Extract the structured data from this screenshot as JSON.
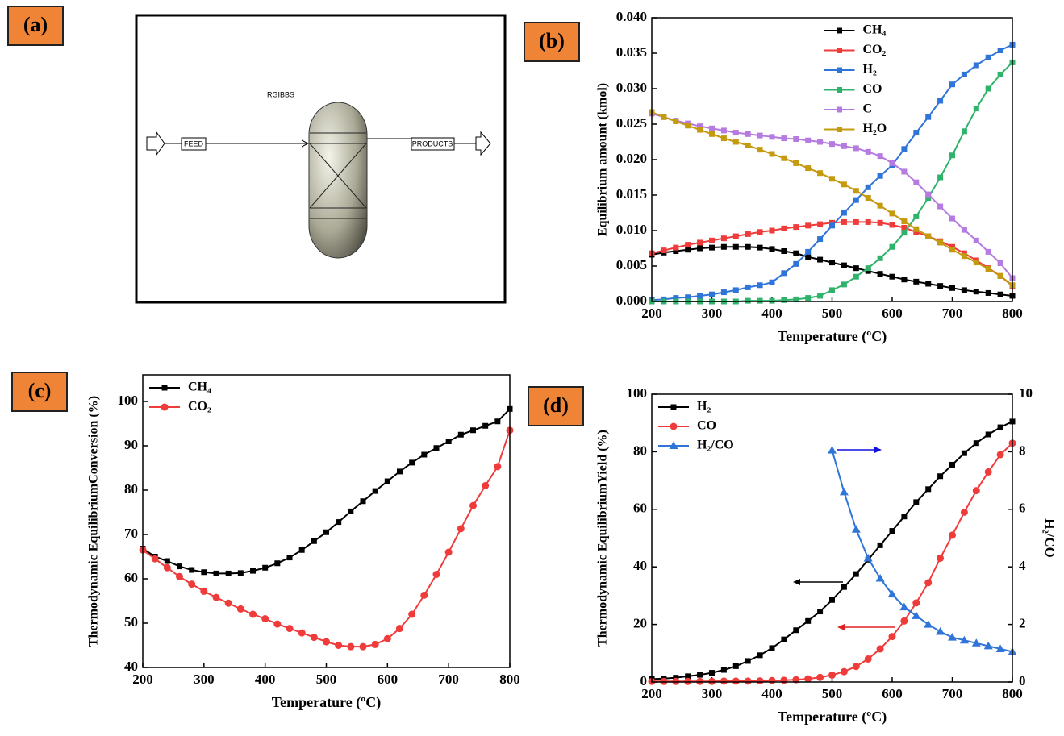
{
  "diagram": {
    "panel_label": "(a)",
    "reactor_label": "RGIBBS",
    "inlet": "FEED",
    "outlet": "PRODUCTS"
  },
  "chart_data": [
    {
      "type": "line",
      "panel_label": "(b)",
      "x_label": "Temperature (ºC)",
      "y_label": "Equilibrium amount (kmol)",
      "x": [
        200,
        220,
        240,
        260,
        280,
        300,
        320,
        340,
        360,
        380,
        400,
        420,
        440,
        460,
        480,
        500,
        520,
        540,
        560,
        580,
        600,
        620,
        640,
        660,
        680,
        700,
        720,
        740,
        760,
        780,
        800
      ],
      "xlim": [
        200,
        800
      ],
      "xticks": [
        200,
        300,
        400,
        500,
        600,
        700,
        800
      ],
      "ylim": [
        0,
        0.04
      ],
      "yticks": [
        {
          "value": 0,
          "label": "0.000"
        },
        {
          "value": 0.005,
          "label": "0.005"
        },
        {
          "value": 0.01,
          "label": "0.010"
        },
        {
          "value": 0.015,
          "label": "0.015"
        },
        {
          "value": 0.02,
          "label": "0.020"
        },
        {
          "value": 0.025,
          "label": "0.025"
        },
        {
          "value": 0.03,
          "label": "0.030"
        },
        {
          "value": 0.035,
          "label": "0.035"
        },
        {
          "value": 0.04,
          "label": "0.040"
        }
      ],
      "legend": "upper center",
      "series": [
        {
          "name": "CH₄",
          "color": "#000000",
          "marker": "square",
          "values": [
            0.0066,
            0.0069,
            0.0071,
            0.0073,
            0.0075,
            0.0076,
            0.0077,
            0.0077,
            0.0077,
            0.0076,
            0.0074,
            0.0071,
            0.0068,
            0.0063,
            0.0059,
            0.0055,
            0.0051,
            0.0047,
            0.0043,
            0.0039,
            0.0035,
            0.0031,
            0.0028,
            0.0025,
            0.0022,
            0.0019,
            0.0016,
            0.0014,
            0.0012,
            0.001,
            0.0008
          ]
        },
        {
          "name": "CO₂",
          "color": "#f03b3b",
          "marker": "square",
          "values": [
            0.0068,
            0.0072,
            0.0076,
            0.008,
            0.0083,
            0.0086,
            0.0089,
            0.0092,
            0.0095,
            0.0098,
            0.01,
            0.0103,
            0.0105,
            0.0107,
            0.0109,
            0.0111,
            0.0112,
            0.0112,
            0.0112,
            0.0111,
            0.0108,
            0.0104,
            0.0098,
            0.0092,
            0.0085,
            0.0077,
            0.0068,
            0.0058,
            0.0047,
            0.0036,
            0.0022
          ]
        },
        {
          "name": "H₂",
          "color": "#2f74d8",
          "marker": "square",
          "values": [
            0.0002,
            0.0003,
            0.0005,
            0.0006,
            0.0008,
            0.001,
            0.0013,
            0.0016,
            0.002,
            0.0023,
            0.0027,
            0.004,
            0.0053,
            0.007,
            0.0088,
            0.0107,
            0.0125,
            0.0143,
            0.0161,
            0.0177,
            0.0192,
            0.0215,
            0.0238,
            0.026,
            0.0283,
            0.0306,
            0.032,
            0.0333,
            0.0344,
            0.0354,
            0.0362
          ]
        },
        {
          "name": "CO",
          "color": "#2fb36b",
          "marker": "square",
          "values": [
            0,
            0,
            0,
            0,
            0,
            0,
            0,
            0,
            0.0001,
            0.0001,
            0.0001,
            0.0002,
            0.0003,
            0.0005,
            0.0008,
            0.0016,
            0.0024,
            0.0035,
            0.0047,
            0.0061,
            0.0077,
            0.0097,
            0.012,
            0.0146,
            0.0175,
            0.0206,
            0.024,
            0.0272,
            0.03,
            0.032,
            0.0337
          ]
        },
        {
          "name": "C",
          "color": "#b57be0",
          "marker": "square",
          "values": [
            0.0265,
            0.026,
            0.0255,
            0.0251,
            0.0247,
            0.0244,
            0.0241,
            0.0238,
            0.0236,
            0.0234,
            0.0232,
            0.023,
            0.0229,
            0.0227,
            0.0225,
            0.0222,
            0.0219,
            0.0216,
            0.0211,
            0.0205,
            0.0195,
            0.0183,
            0.0168,
            0.0151,
            0.0134,
            0.0117,
            0.0101,
            0.0086,
            0.007,
            0.0054,
            0.0033
          ]
        },
        {
          "name": "H₂O",
          "color": "#c49a0f",
          "marker": "square",
          "values": [
            0.0267,
            0.026,
            0.0254,
            0.0248,
            0.0242,
            0.0236,
            0.023,
            0.0225,
            0.022,
            0.0214,
            0.0208,
            0.0202,
            0.0195,
            0.0188,
            0.0181,
            0.0173,
            0.0165,
            0.0156,
            0.0146,
            0.0135,
            0.0124,
            0.0113,
            0.0102,
            0.0092,
            0.0083,
            0.0073,
            0.0064,
            0.0055,
            0.0046,
            0.0036,
            0.0023
          ]
        }
      ]
    },
    {
      "type": "line",
      "panel_label": "(c)",
      "x_label": "Temperature (ºC)",
      "y_label": "Thermodynamic EquilibriumConversion (%)",
      "x": [
        200,
        220,
        240,
        260,
        280,
        300,
        320,
        340,
        360,
        380,
        400,
        420,
        440,
        460,
        480,
        500,
        520,
        540,
        560,
        580,
        600,
        620,
        640,
        660,
        680,
        700,
        720,
        740,
        760,
        780,
        800
      ],
      "xlim": [
        200,
        800
      ],
      "xticks": [
        200,
        300,
        400,
        500,
        600,
        700,
        800
      ],
      "ylim": [
        40,
        106
      ],
      "yticks": [
        40,
        50,
        60,
        70,
        80,
        90,
        100
      ],
      "legend": "upper left",
      "series": [
        {
          "name": "CH₄",
          "color": "#000000",
          "marker": "square",
          "values": [
            66.8,
            65,
            64,
            62.8,
            62,
            61.5,
            61.2,
            61.2,
            61.3,
            61.8,
            62.5,
            63.5,
            64.8,
            66.5,
            68.5,
            70.5,
            72.8,
            75.2,
            77.5,
            79.8,
            82,
            84.2,
            86.2,
            88,
            89.5,
            91,
            92.5,
            93.5,
            94.5,
            95.5,
            98.3
          ]
        },
        {
          "name": "CO₂",
          "color": "#f03b3b",
          "marker": "circle",
          "values": [
            66.5,
            64.5,
            62.5,
            60.5,
            58.8,
            57.2,
            55.8,
            54.5,
            53.2,
            52,
            51,
            49.8,
            48.8,
            47.8,
            46.8,
            45.8,
            45,
            44.7,
            44.7,
            45.2,
            46.5,
            48.8,
            52,
            56.3,
            61,
            66,
            71.3,
            76.5,
            81,
            85.3,
            93.5
          ]
        }
      ]
    },
    {
      "type": "line",
      "panel_label": "(d)",
      "x_label": "Temperature (ºC)",
      "y_label": "Thermodynamic EquilibriumYield (%)",
      "y2_label": "H₂/CO",
      "x": [
        200,
        220,
        240,
        260,
        280,
        300,
        320,
        340,
        360,
        380,
        400,
        420,
        440,
        460,
        480,
        500,
        520,
        540,
        560,
        580,
        600,
        620,
        640,
        660,
        680,
        700,
        720,
        740,
        760,
        780,
        800
      ],
      "xlim": [
        200,
        800
      ],
      "xticks": [
        200,
        300,
        400,
        500,
        600,
        700,
        800
      ],
      "ylim": [
        0,
        100
      ],
      "yticks": [
        0,
        20,
        40,
        60,
        80,
        100
      ],
      "y2lim": [
        0,
        10
      ],
      "y2ticks": [
        0,
        2,
        4,
        6,
        8,
        10
      ],
      "legend": "upper left",
      "series": [
        {
          "name": "H₂",
          "color": "#000000",
          "marker": "square",
          "values": [
            1,
            1.2,
            1.5,
            2,
            2.5,
            3.2,
            4.2,
            5.5,
            7.3,
            9.3,
            11.8,
            14.8,
            18,
            21.2,
            24.5,
            28.5,
            33,
            37.5,
            42.5,
            47.5,
            52.5,
            57.5,
            62.5,
            67,
            71.5,
            75.5,
            79.5,
            83,
            86,
            88.5,
            90.5
          ]
        },
        {
          "name": "CO",
          "color": "#f03b3b",
          "marker": "circle",
          "values": [
            0.2,
            0.2,
            0.2,
            0.2,
            0.2,
            0.2,
            0.3,
            0.3,
            0.3,
            0.4,
            0.5,
            0.6,
            0.8,
            1.1,
            1.6,
            2.4,
            3.6,
            5.4,
            8,
            11.5,
            15.8,
            21.2,
            27.5,
            34.5,
            43,
            51,
            59,
            66.5,
            73,
            79,
            83
          ]
        },
        {
          "name": "H₂/CO",
          "color": "#2f74d8",
          "marker": "triangle",
          "axis": "y2",
          "values": [
            null,
            null,
            null,
            null,
            null,
            null,
            null,
            null,
            null,
            null,
            null,
            null,
            null,
            null,
            null,
            8.05,
            6.6,
            5.3,
            4.3,
            3.6,
            3.05,
            2.6,
            2.3,
            2,
            1.75,
            1.55,
            1.45,
            1.35,
            1.25,
            1.15,
            1.05
          ]
        }
      ]
    }
  ]
}
